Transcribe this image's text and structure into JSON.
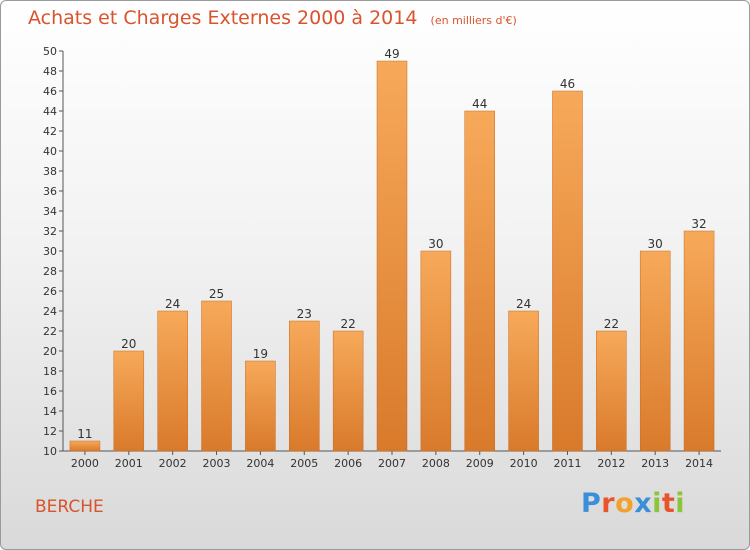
{
  "header": {
    "title": "Achats et Charges Externes 2000 à 2014",
    "unit": "(en milliers d'€)"
  },
  "commune": "BERCHE",
  "logo": {
    "text": "Proxiti",
    "letter_colors": [
      "#3a8fd8",
      "#e8552a",
      "#f2a12a",
      "#3a8fd8",
      "#8cc43a",
      "#e8552a",
      "#8cc43a"
    ]
  },
  "colors": {
    "title": "#d9532c",
    "bar_light": "#f7a95a",
    "bar_dark": "#d97a2b"
  },
  "chart_data": {
    "type": "bar",
    "categories": [
      "2000",
      "2001",
      "2002",
      "2003",
      "2004",
      "2005",
      "2006",
      "2007",
      "2008",
      "2009",
      "2010",
      "2011",
      "2012",
      "2013",
      "2014"
    ],
    "values": [
      11,
      20,
      24,
      25,
      19,
      23,
      22,
      49,
      30,
      44,
      24,
      46,
      22,
      30,
      32
    ],
    "ylim": [
      10,
      50
    ],
    "ytick_step": 2,
    "grid": false,
    "legend": "none"
  }
}
